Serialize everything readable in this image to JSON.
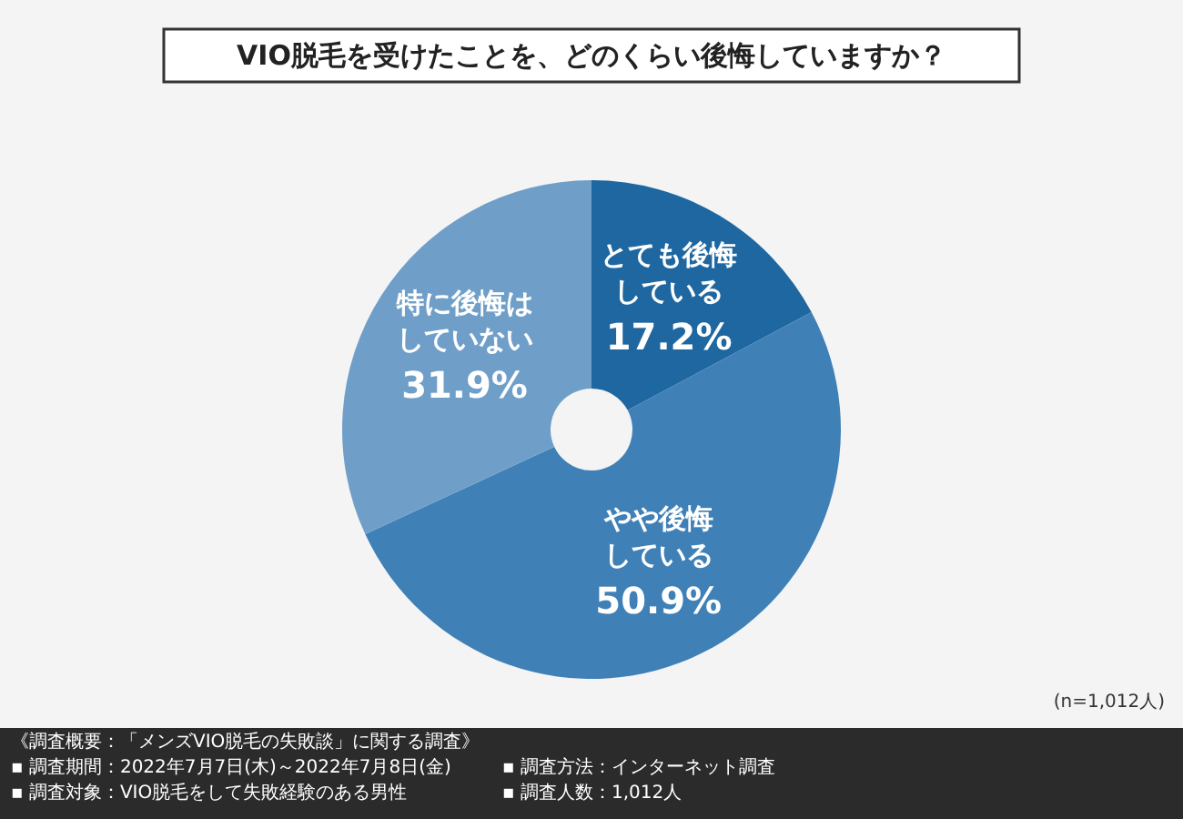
{
  "chart_data": {
    "type": "donut",
    "title": "VIO脱毛を受けたことを、どのくらい後悔していますか？",
    "categories": [
      "とても後悔している",
      "やや後悔している",
      "特に後悔はしていない"
    ],
    "values": [
      17.2,
      50.9,
      31.9
    ],
    "colors": [
      "#1f67a0",
      "#3f80b7",
      "#6f9fc9"
    ],
    "value_labels": [
      "17.2%",
      "50.9%",
      "31.9%"
    ],
    "legend": false,
    "annotations": [
      "(n=1,012人)",
      "《調査概要：「メンズVIO脱毛の失敗談」に関する調査》",
      "▪ 調査期間：2022年7月7日(木)～2022年7月8日(金)",
      "▪ 調査方法：インターネット調査",
      "▪ 調査対象：VIO脱毛をして失敗経験のある男性",
      "▪ 調査人数：1,012人"
    ]
  }
}
